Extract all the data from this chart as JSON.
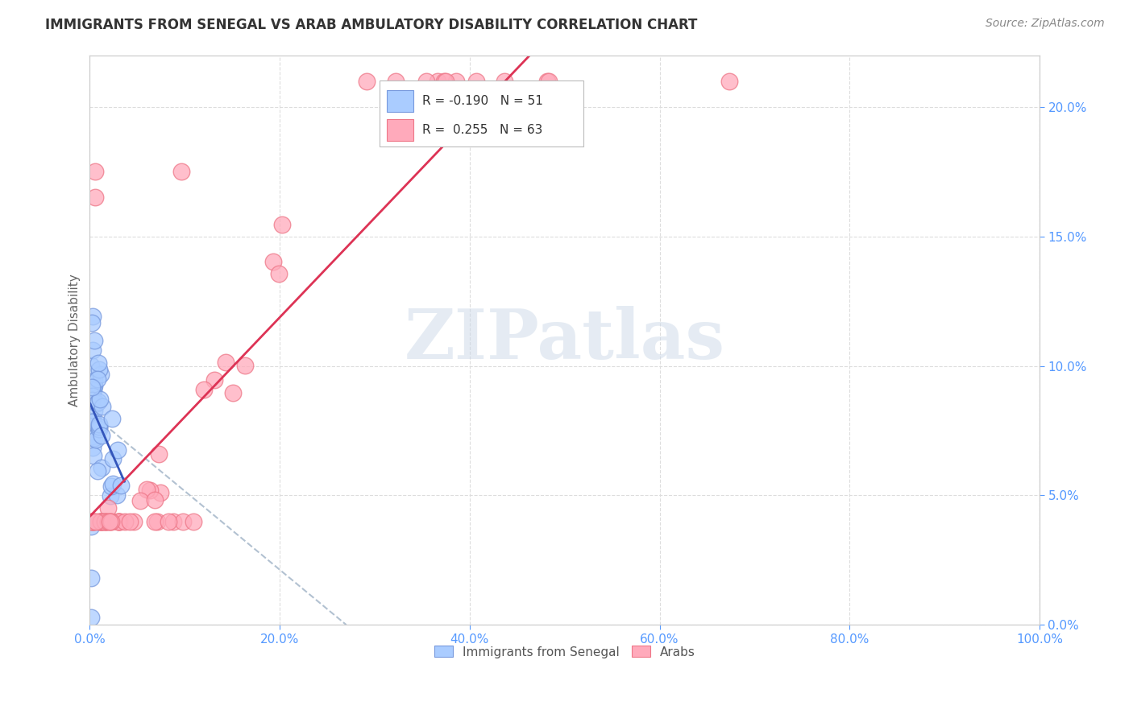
{
  "title": "IMMIGRANTS FROM SENEGAL VS ARAB AMBULATORY DISABILITY CORRELATION CHART",
  "source": "Source: ZipAtlas.com",
  "ylabel": "Ambulatory Disability",
  "xlim": [
    0,
    1.0
  ],
  "ylim": [
    0,
    0.22
  ],
  "xtick_vals": [
    0.0,
    0.2,
    0.4,
    0.6,
    0.8,
    1.0
  ],
  "xtick_labels": [
    "0.0%",
    "20.0%",
    "40.0%",
    "60.0%",
    "80.0%",
    "100.0%"
  ],
  "ytick_vals": [
    0.0,
    0.05,
    0.1,
    0.15,
    0.2
  ],
  "ytick_labels": [
    "0.0%",
    "5.0%",
    "10.0%",
    "15.0%",
    "20.0%"
  ],
  "legend_line1": "R = -0.190   N = 51",
  "legend_line2": "R =  0.255   N = 63",
  "legend_label1": "Immigrants from Senegal",
  "legend_label2": "Arabs",
  "senegal_color": "#aaccff",
  "arab_color": "#ffaabb",
  "senegal_edge": "#7799dd",
  "arab_edge": "#ee7788",
  "regression_senegal_color": "#3355bb",
  "regression_arab_color": "#dd3355",
  "dashed_color": "#aabbcc",
  "background_color": "#ffffff",
  "grid_color": "#dddddd",
  "watermark_text": "ZIPatlas",
  "watermark_color": "#ccd9e8",
  "title_color": "#333333",
  "source_color": "#888888",
  "tick_color": "#5599ff",
  "ylabel_color": "#666666"
}
